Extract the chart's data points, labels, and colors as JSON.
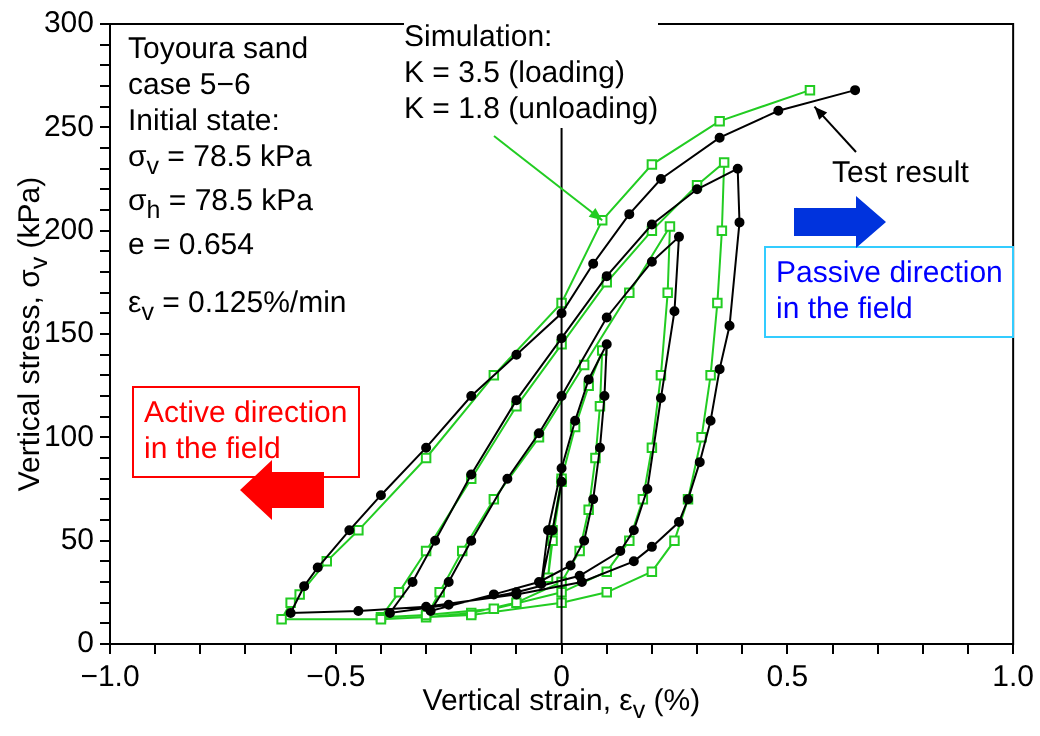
{
  "chart_data": {
    "type": "line",
    "xlabel": "Vertical strain, ε$_{v}$ (%)",
    "ylabel": "Vertical stress, σ$_{v}$ (kPa)",
    "xlim": [
      -1,
      1
    ],
    "ylim": [
      0,
      300
    ],
    "xticks": [
      {
        "value": -1,
        "label": "−1.0"
      },
      {
        "value": -0.9,
        "label": null
      },
      {
        "value": -0.8,
        "label": null
      },
      {
        "value": -0.7,
        "label": null
      },
      {
        "value": -0.6,
        "label": null
      },
      {
        "value": -0.5,
        "label": "−0.5"
      },
      {
        "value": -0.4,
        "label": null
      },
      {
        "value": -0.3,
        "label": null
      },
      {
        "value": -0.2,
        "label": null
      },
      {
        "value": -0.1,
        "label": null
      },
      0,
      {
        "value": 0.1,
        "label": null
      },
      {
        "value": 0.2,
        "label": null
      },
      {
        "value": 0.3,
        "label": null
      },
      {
        "value": 0.4,
        "label": null
      },
      0.5,
      {
        "value": 0.6,
        "label": null
      },
      {
        "value": 0.7,
        "label": null
      },
      {
        "value": 0.8,
        "label": null
      },
      {
        "value": 0.9,
        "label": null
      },
      {
        "value": 1,
        "label": "1.0"
      }
    ],
    "yticks": [
      0,
      {
        "value": 10,
        "label": null
      },
      {
        "value": 20,
        "label": null
      },
      {
        "value": 30,
        "label": null
      },
      {
        "value": 40,
        "label": null
      },
      50,
      {
        "value": 60,
        "label": null
      },
      {
        "value": 70,
        "label": null
      },
      {
        "value": 80,
        "label": null
      },
      {
        "value": 90,
        "label": null
      },
      100,
      {
        "value": 110,
        "label": null
      },
      {
        "value": 120,
        "label": null
      },
      {
        "value": 130,
        "label": null
      },
      {
        "value": 140,
        "label": null
      },
      150,
      {
        "value": 160,
        "label": null
      },
      {
        "value": 170,
        "label": null
      },
      {
        "value": 180,
        "label": null
      },
      {
        "value": 190,
        "label": null
      },
      200,
      {
        "value": 210,
        "label": null
      },
      {
        "value": 220,
        "label": null
      },
      {
        "value": 230,
        "label": null
      },
      {
        "value": 240,
        "label": null
      },
      250,
      {
        "value": 260,
        "label": null
      },
      {
        "value": 270,
        "label": null
      },
      {
        "value": 280,
        "label": null
      },
      {
        "value": 290,
        "label": null
      },
      300
    ],
    "grid": false,
    "legend": false,
    "ref_lines": [
      {
        "axis": "x",
        "value": 0,
        "color": "#000000"
      }
    ],
    "series": [
      {
        "color": "#000000",
        "marker": "circle",
        "x": [
          0,
          -0.02,
          -0.045,
          -0.03,
          0,
          0.03,
          0.06,
          0.1,
          0.095,
          0.085,
          0.07,
          0.05,
          0.02,
          -0.05,
          -0.15,
          -0.29,
          -0.25,
          -0.2,
          -0.12,
          -0.05,
          0,
          0.1,
          0.2,
          0.26,
          0.25,
          0.22,
          0.19,
          0.16,
          0.13,
          0.04,
          -0.1,
          -0.25,
          -0.38,
          -0.33,
          -0.28,
          -0.2,
          -0.1,
          0,
          0.1,
          0.2,
          0.3,
          0.39,
          0.394,
          0.372,
          0.35,
          0.33,
          0.306,
          0.28,
          0.26,
          0.2,
          0.16,
          0.045,
          -0.1,
          -0.3,
          -0.45,
          -0.6,
          -0.57,
          -0.54,
          -0.47,
          -0.4,
          -0.3,
          -0.2,
          -0.1,
          0,
          0.07,
          0.15,
          0.22,
          0.35,
          0.48,
          0.65
        ],
        "values": [
          78.5,
          55,
          29,
          55,
          85,
          108,
          128,
          145,
          120,
          95,
          70,
          50,
          38,
          30,
          24,
          16,
          30,
          50,
          80,
          102,
          120,
          158,
          185,
          197,
          161,
          119,
          75,
          55,
          45,
          33,
          25,
          19,
          15,
          30,
          50,
          82,
          118,
          148,
          178,
          203,
          220,
          230,
          204,
          154,
          133,
          108,
          88,
          70,
          59,
          47,
          40,
          30,
          24,
          18,
          16,
          15,
          28,
          37,
          55,
          72,
          95,
          120,
          140,
          160,
          184,
          208,
          225,
          245,
          258,
          268
        ]
      },
      {
        "color": "#22cc22",
        "marker": "square",
        "x": [
          0,
          -0.02,
          -0.03,
          -0.02,
          0,
          0.03,
          0.06,
          0.09,
          0.085,
          0.075,
          0.06,
          0.04,
          0,
          -0.1,
          -0.2,
          -0.3,
          -0.27,
          -0.22,
          -0.15,
          -0.05,
          0.05,
          0.15,
          0.24,
          0.235,
          0.22,
          0.2,
          0.18,
          0.15,
          0.1,
          0,
          -0.15,
          -0.3,
          -0.4,
          -0.36,
          -0.3,
          -0.2,
          -0.1,
          0,
          0.1,
          0.2,
          0.3,
          0.36,
          0.355,
          0.345,
          0.33,
          0.31,
          0.28,
          0.25,
          0.2,
          0.1,
          0,
          -0.2,
          -0.4,
          -0.62,
          -0.6,
          -0.58,
          -0.52,
          -0.45,
          -0.3,
          -0.15,
          0,
          0.09,
          0.2,
          0.35,
          0.55
        ],
        "values": [
          78.5,
          50,
          32,
          55,
          80,
          105,
          125,
          142,
          115,
          90,
          65,
          45,
          30,
          20,
          15,
          13,
          25,
          45,
          70,
          100,
          135,
          170,
          202,
          170,
          130,
          95,
          70,
          50,
          35,
          25,
          17,
          14,
          13,
          25,
          45,
          80,
          115,
          145,
          175,
          200,
          222,
          233,
          200,
          165,
          130,
          100,
          70,
          50,
          35,
          25,
          20,
          14,
          12,
          12,
          20,
          24,
          40,
          55,
          90,
          130,
          165,
          205,
          232,
          253,
          268
        ]
      }
    ],
    "annotations": [
      "Toyoura sand\ncase 5−6\nInitial state:\nσ$_{v}$ = 78.5 kPa\nσ$_{h}$ = 78.5 kPa\ne = 0.654",
      "ε$_{v}$ = 0.125%/min",
      {
        "text": "Simulation:\nK = 3.5 (loading)\nK = 1.8 (unloading)",
        "x": 0.09,
        "y": 205
      },
      {
        "text": "Test result",
        "x": 0.56,
        "y": 260
      },
      "Active direction\nin the field",
      "Passive direction\nin the field"
    ]
  }
}
